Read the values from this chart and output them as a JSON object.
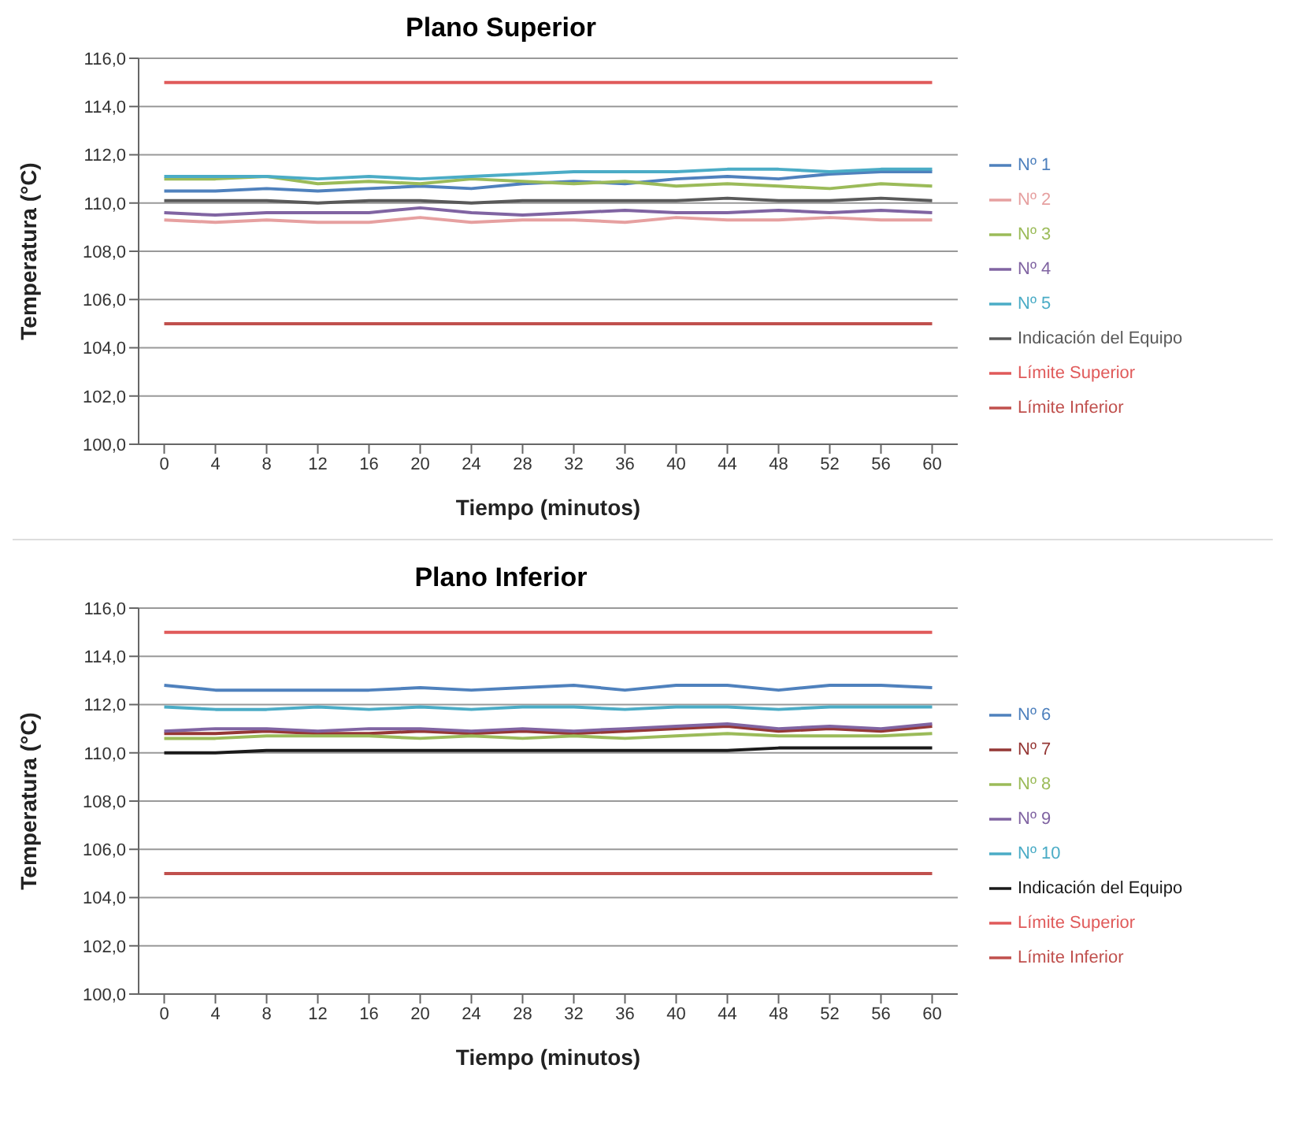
{
  "chart_data": [
    {
      "type": "line",
      "title": "Plano Superior",
      "xlabel": "Tiempo (minutos)",
      "ylabel": "Temperatura (°C)",
      "x": [
        0,
        4,
        8,
        12,
        16,
        20,
        24,
        28,
        32,
        36,
        40,
        44,
        48,
        52,
        56,
        60
      ],
      "xlim": [
        -2,
        62
      ],
      "xticks": [
        0,
        4,
        8,
        12,
        16,
        20,
        24,
        28,
        32,
        36,
        40,
        44,
        48,
        52,
        56,
        60
      ],
      "ylim": [
        100,
        116
      ],
      "yticks": [
        {
          "value": 100,
          "label": "100,0"
        },
        {
          "value": 102,
          "label": "102,0"
        },
        {
          "value": 104,
          "label": "104,0"
        },
        {
          "value": 106,
          "label": "106,0"
        },
        {
          "value": 108,
          "label": "108,0"
        },
        {
          "value": 110,
          "label": "110,0"
        },
        {
          "value": 112,
          "label": "112,0"
        },
        {
          "value": 114,
          "label": "114,0"
        },
        {
          "value": 116,
          "label": "116,0"
        }
      ],
      "grid": "y",
      "legend": "right",
      "marker": "none",
      "line_style": "solid",
      "series": [
        {
          "name": "Nº 1",
          "color": "#4f81bd",
          "values": [
            110.5,
            110.5,
            110.6,
            110.5,
            110.6,
            110.7,
            110.6,
            110.8,
            110.9,
            110.8,
            111.0,
            111.1,
            111.0,
            111.2,
            111.3,
            111.3
          ]
        },
        {
          "name": "Nº 2",
          "color": "#e6a0a0",
          "values": [
            109.3,
            109.2,
            109.3,
            109.2,
            109.2,
            109.4,
            109.2,
            109.3,
            109.3,
            109.2,
            109.4,
            109.3,
            109.3,
            109.4,
            109.3,
            109.3
          ]
        },
        {
          "name": "Nº 3",
          "color": "#9bbb59",
          "values": [
            111.0,
            111.0,
            111.1,
            110.8,
            110.9,
            110.8,
            111.0,
            110.9,
            110.8,
            110.9,
            110.7,
            110.8,
            110.7,
            110.6,
            110.8,
            110.7
          ]
        },
        {
          "name": "Nº 4",
          "color": "#8064a2",
          "values": [
            109.6,
            109.5,
            109.6,
            109.6,
            109.6,
            109.8,
            109.6,
            109.5,
            109.6,
            109.7,
            109.6,
            109.6,
            109.7,
            109.6,
            109.7,
            109.6
          ]
        },
        {
          "name": "Nº 5",
          "color": "#4bacc6",
          "values": [
            111.1,
            111.1,
            111.1,
            111.0,
            111.1,
            111.0,
            111.1,
            111.2,
            111.3,
            111.3,
            111.3,
            111.4,
            111.4,
            111.3,
            111.4,
            111.4
          ]
        },
        {
          "name": "Indicación del Equipo",
          "color": "#595959",
          "values": [
            110.1,
            110.1,
            110.1,
            110.0,
            110.1,
            110.1,
            110.0,
            110.1,
            110.1,
            110.1,
            110.1,
            110.2,
            110.1,
            110.1,
            110.2,
            110.1
          ]
        },
        {
          "name": "Límite Superior",
          "color": "#e05a5a",
          "values": [
            115,
            115,
            115,
            115,
            115,
            115,
            115,
            115,
            115,
            115,
            115,
            115,
            115,
            115,
            115,
            115
          ]
        },
        {
          "name": "Límite Inferior",
          "color": "#c0504d",
          "values": [
            105,
            105,
            105,
            105,
            105,
            105,
            105,
            105,
            105,
            105,
            105,
            105,
            105,
            105,
            105,
            105
          ]
        }
      ]
    },
    {
      "type": "line",
      "title": "Plano Inferior",
      "xlabel": "Tiempo (minutos)",
      "ylabel": "Temperatura (°C)",
      "x": [
        0,
        4,
        8,
        12,
        16,
        20,
        24,
        28,
        32,
        36,
        40,
        44,
        48,
        52,
        56,
        60
      ],
      "xlim": [
        -2,
        62
      ],
      "xticks": [
        0,
        4,
        8,
        12,
        16,
        20,
        24,
        28,
        32,
        36,
        40,
        44,
        48,
        52,
        56,
        60
      ],
      "ylim": [
        100,
        116
      ],
      "yticks": [
        {
          "value": 100,
          "label": "100,0"
        },
        {
          "value": 102,
          "label": "102,0"
        },
        {
          "value": 104,
          "label": "104,0"
        },
        {
          "value": 106,
          "label": "106,0"
        },
        {
          "value": 108,
          "label": "108,0"
        },
        {
          "value": 110,
          "label": "110,0"
        },
        {
          "value": 112,
          "label": "112,0"
        },
        {
          "value": 114,
          "label": "114,0"
        },
        {
          "value": 116,
          "label": "116,0"
        }
      ],
      "grid": "y",
      "legend": "right",
      "marker": "none",
      "line_style": "solid",
      "series": [
        {
          "name": "Nº 6",
          "color": "#4f81bd",
          "values": [
            112.8,
            112.6,
            112.6,
            112.6,
            112.6,
            112.7,
            112.6,
            112.7,
            112.8,
            112.6,
            112.8,
            112.8,
            112.6,
            112.8,
            112.8,
            112.7
          ]
        },
        {
          "name": "Nº 7",
          "color": "#953735",
          "values": [
            110.8,
            110.8,
            110.9,
            110.8,
            110.8,
            110.9,
            110.8,
            110.9,
            110.8,
            110.9,
            111.0,
            111.1,
            110.9,
            111.0,
            110.9,
            111.1
          ]
        },
        {
          "name": "Nº 8",
          "color": "#9bbb59",
          "values": [
            110.6,
            110.6,
            110.7,
            110.7,
            110.7,
            110.6,
            110.7,
            110.6,
            110.7,
            110.6,
            110.7,
            110.8,
            110.7,
            110.7,
            110.7,
            110.8
          ]
        },
        {
          "name": "Nº 9",
          "color": "#8064a2",
          "values": [
            110.9,
            111.0,
            111.0,
            110.9,
            111.0,
            111.0,
            110.9,
            111.0,
            110.9,
            111.0,
            111.1,
            111.2,
            111.0,
            111.1,
            111.0,
            111.2
          ]
        },
        {
          "name": "Nº 10",
          "color": "#4bacc6",
          "values": [
            111.9,
            111.8,
            111.8,
            111.9,
            111.8,
            111.9,
            111.8,
            111.9,
            111.9,
            111.8,
            111.9,
            111.9,
            111.8,
            111.9,
            111.9,
            111.9
          ]
        },
        {
          "name": "Indicación del Equipo",
          "color": "#1a1a1a",
          "values": [
            110.0,
            110.0,
            110.1,
            110.1,
            110.1,
            110.1,
            110.1,
            110.1,
            110.1,
            110.1,
            110.1,
            110.1,
            110.2,
            110.2,
            110.2,
            110.2
          ]
        },
        {
          "name": "Límite Superior",
          "color": "#e05a5a",
          "values": [
            115,
            115,
            115,
            115,
            115,
            115,
            115,
            115,
            115,
            115,
            115,
            115,
            115,
            115,
            115,
            115
          ]
        },
        {
          "name": "Límite Inferior",
          "color": "#c0504d",
          "values": [
            105,
            105,
            105,
            105,
            105,
            105,
            105,
            105,
            105,
            105,
            105,
            105,
            105,
            105,
            105,
            105
          ]
        }
      ]
    }
  ]
}
